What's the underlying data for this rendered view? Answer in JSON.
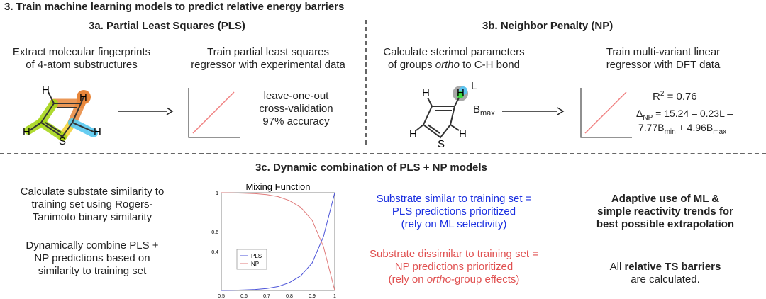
{
  "title": "3. Train machine learning models to predict relative energy barriers",
  "pls": {
    "heading": "3a. Partial Least Squares (PLS)",
    "step1": [
      "Extract molecular fingerprints",
      "of 4-atom substructures"
    ],
    "step2": [
      "Train partial least squares",
      "regressor with experimental data"
    ],
    "metric": [
      "leave-one-out",
      "cross-validation",
      "97% accuracy"
    ],
    "atoms": {
      "h": "H",
      "s": "S"
    }
  },
  "np": {
    "heading": "3b. Neighbor Penalty (NP)",
    "step1_a": "Calculate sterimol parameters",
    "step1_b_pre": "of groups ",
    "step1_b_it": "ortho",
    "step1_b_post": " to C-H bond",
    "step2": [
      "Train multi-variant linear",
      "regressor with DFT data"
    ],
    "label_L": "L",
    "label_B": "B",
    "label_B_sub": "max",
    "r2_pre": "R",
    "r2_sup": "2",
    "r2_post": " = 0.76",
    "eq1_delta": "Δ",
    "eq1_sub": "NP",
    "eq1_rest": " = 15.24 – 0.23L –",
    "eq2_a": "7.77B",
    "eq2_sub1": "min",
    "eq2_b": " + 4.96B",
    "eq2_sub2": "max"
  },
  "combo": {
    "heading": "3c. Dynamic combination of PLS + NP models",
    "left1": [
      "Calculate substate similarity to",
      "training set using Rogers-",
      "Tanimoto binary similarity"
    ],
    "left2": [
      "Dynamically combine PLS +",
      "NP predictions based on",
      "similarity to training set"
    ],
    "blue": [
      "Substrate similar to training set =",
      "PLS predictions prioritized",
      "(rely on ML selectivity)"
    ],
    "red_1": "Substrate dissimilar to training set =",
    "red_2": "NP predictions prioritized",
    "red_3_pre": "(rely on ",
    "red_3_it": "ortho",
    "red_3_post": "-group effects)",
    "right1": [
      "Adaptive use of ML &",
      "simple reactivity trends for",
      "best possible extrapolation"
    ],
    "right2_pre": "All ",
    "right2_b": "relative TS barriers",
    "right2_line2": "are calculated."
  },
  "chart_data": {
    "type": "line",
    "title": "Mixing Function",
    "xlim": [
      0.5,
      1
    ],
    "ylim": [
      0,
      1
    ],
    "x_ticks": [
      "0.5",
      "0.6",
      "0.7",
      "0.8",
      "0.9",
      "1"
    ],
    "y_ticks": [
      "0.4",
      "0.6",
      "1"
    ],
    "y_tick_values": [
      0.4,
      0.6,
      1
    ],
    "x": [
      0.5,
      0.55,
      0.6,
      0.65,
      0.7,
      0.75,
      0.8,
      0.85,
      0.9,
      0.95,
      1.0
    ],
    "series": [
      {
        "name": "PLS",
        "color": "#4a52d8",
        "values": [
          0.0,
          0.002,
          0.005,
          0.01,
          0.02,
          0.04,
          0.08,
          0.15,
          0.28,
          0.55,
          1.0
        ]
      },
      {
        "name": "NP",
        "color": "#e07b7b",
        "values": [
          1.0,
          0.998,
          0.995,
          0.99,
          0.98,
          0.96,
          0.92,
          0.85,
          0.72,
          0.45,
          0.0
        ]
      }
    ],
    "legend": "lower-left"
  },
  "colors": {
    "orange": "#e8863a",
    "green": "#a6d61a",
    "cyan": "#55c8f0",
    "yellow": "#f3d23a",
    "red_line": "#f08080"
  }
}
